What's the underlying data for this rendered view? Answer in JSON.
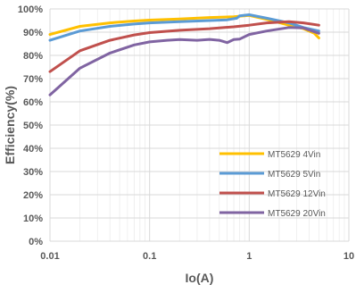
{
  "chart_data": {
    "type": "line",
    "xscale": "log",
    "xlabel": "Io(A)",
    "ylabel": "Efficiency(%)",
    "xlim": [
      0.01,
      10
    ],
    "ylim": [
      0,
      100
    ],
    "x_ticks": [
      "0.01",
      "0.1",
      "1",
      "10"
    ],
    "y_ticks": [
      "0%",
      "10%",
      "20%",
      "30%",
      "40%",
      "50%",
      "60%",
      "70%",
      "80%",
      "90%",
      "100%"
    ],
    "grid": true,
    "legend_position": "bottom-right",
    "series": [
      {
        "name": "MT5629 4Vin",
        "color": "#ffc000",
        "x": [
          0.01,
          0.02,
          0.04,
          0.07,
          0.1,
          0.2,
          0.4,
          0.7,
          1.0,
          1.5,
          2.5,
          3.5,
          4.5,
          5.0
        ],
        "y": [
          89,
          92.5,
          94,
          94.8,
          95.2,
          95.7,
          96.3,
          96.6,
          97.2,
          95.5,
          93,
          91.5,
          89.5,
          87.5
        ]
      },
      {
        "name": "MT5629 5Vin",
        "color": "#5b9bd5",
        "x": [
          0.01,
          0.02,
          0.04,
          0.07,
          0.1,
          0.2,
          0.4,
          0.6,
          0.75,
          0.8,
          1.0,
          1.5,
          2.5,
          3.5,
          5.0
        ],
        "y": [
          86.5,
          90.5,
          92.5,
          93.5,
          94,
          94.5,
          95,
          95.3,
          96,
          97,
          97.5,
          96,
          94,
          92,
          90.5
        ]
      },
      {
        "name": "MT5629 12Vin",
        "color": "#c0504d",
        "x": [
          0.01,
          0.02,
          0.04,
          0.07,
          0.1,
          0.2,
          0.4,
          0.7,
          1.0,
          1.5,
          2.5,
          3.5,
          5.0
        ],
        "y": [
          73,
          82,
          86.5,
          88.8,
          89.8,
          90.8,
          91.5,
          92.3,
          93,
          94,
          94.5,
          94,
          93
        ]
      },
      {
        "name": "MT5629 20Vin",
        "color": "#8064a2",
        "x": [
          0.01,
          0.02,
          0.04,
          0.07,
          0.1,
          0.15,
          0.2,
          0.3,
          0.4,
          0.5,
          0.6,
          0.7,
          0.8,
          1.0,
          1.5,
          2.5,
          3.5,
          5.0
        ],
        "y": [
          63,
          74.5,
          81,
          84.5,
          85.8,
          86.5,
          86.8,
          86.5,
          86.9,
          86.5,
          85.5,
          86.8,
          87,
          89,
          90.5,
          92,
          91.8,
          89.5
        ]
      }
    ]
  }
}
